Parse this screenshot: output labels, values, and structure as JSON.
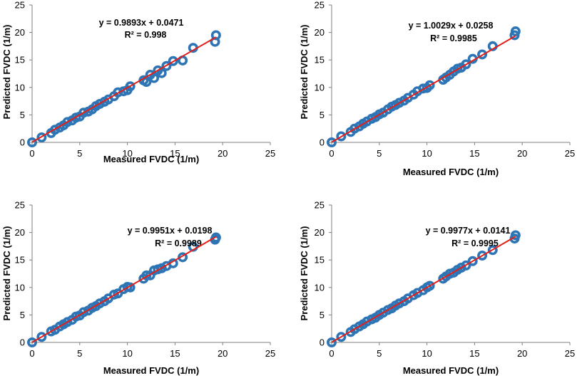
{
  "colors": {
    "marker": "#2e75b6",
    "fit_line": "#e0211c",
    "axis": "#7f7f7f"
  },
  "chart_data": [
    {
      "type": "scatter",
      "title": "",
      "xlabel": "Measured FVDC (1/m)",
      "ylabel": "Predicted FVDC (1/m)",
      "xlim": [
        0,
        25
      ],
      "ylim": [
        0,
        25
      ],
      "xticks": [
        "0",
        "5",
        "10",
        "15",
        "20",
        "25"
      ],
      "yticks": [
        "0",
        "5",
        "10",
        "15",
        "20",
        "25"
      ],
      "trendline": {
        "slope": 0.9893,
        "intercept": 0.0471
      },
      "equation": "y = 0.9893x + 0.0471",
      "r_squared": "R² = 0.998",
      "x": [
        0,
        1,
        2,
        2.4,
        2.9,
        3.3,
        3.7,
        4.2,
        4.6,
        5.0,
        5.4,
        5.9,
        6.3,
        6.7,
        7.1,
        7.6,
        8.0,
        8.6,
        9.0,
        9.6,
        10.0,
        10.3,
        11.7,
        12.0,
        12.4,
        12.8,
        13.2,
        13.6,
        14.1,
        14.8,
        15.8,
        16.9,
        19.2,
        19.3
      ],
      "y": [
        0,
        0.9,
        1.7,
        2.3,
        2.7,
        3.1,
        3.7,
        4.0,
        4.5,
        4.7,
        5.4,
        5.6,
        6.0,
        6.6,
        7.0,
        7.4,
        7.8,
        8.4,
        9.1,
        9.3,
        9.5,
        10.2,
        11.3,
        11.0,
        12.3,
        11.7,
        13.1,
        12.6,
        13.9,
        14.8,
        14.9,
        17.2,
        18.3,
        19.5
      ]
    },
    {
      "type": "scatter",
      "title": "",
      "xlabel": "Measured FVDC (1/m)",
      "ylabel": "Predicted FVDC (1/m)",
      "xlim": [
        0,
        25
      ],
      "ylim": [
        0,
        25
      ],
      "xticks": [
        "0",
        "5",
        "10",
        "15",
        "20",
        "25"
      ],
      "yticks": [
        "0",
        "5",
        "10",
        "15",
        "20",
        "25"
      ],
      "trendline": {
        "slope": 1.0029,
        "intercept": 0.0258
      },
      "equation": "y = 1.0029x + 0.0258",
      "r_squared": "R² = 0.9985",
      "x": [
        0,
        1,
        2,
        2.4,
        2.9,
        3.3,
        3.7,
        4.2,
        4.6,
        5.0,
        5.4,
        5.9,
        6.3,
        6.7,
        7.1,
        7.6,
        8.0,
        8.6,
        9.0,
        9.6,
        10.0,
        10.3,
        11.7,
        12.0,
        12.4,
        12.8,
        13.2,
        13.6,
        14.1,
        14.8,
        15.8,
        16.9,
        19.2,
        19.3
      ],
      "y": [
        0,
        1.1,
        1.9,
        2.5,
        2.9,
        3.4,
        3.8,
        4.3,
        4.6,
        5.1,
        5.4,
        6.0,
        6.5,
        6.8,
        7.2,
        7.6,
        8.1,
        8.7,
        9.3,
        9.8,
        9.9,
        10.4,
        11.4,
        11.8,
        12.3,
        12.9,
        13.4,
        13.6,
        14.2,
        15.2,
        16.0,
        17.5,
        19.5,
        20.2
      ]
    },
    {
      "type": "scatter",
      "title": "",
      "xlabel": "Measured FVDC (1/m)",
      "ylabel": "Predicted FVDC (1/m)",
      "xlim": [
        0,
        25
      ],
      "ylim": [
        0,
        25
      ],
      "xticks": [
        "0",
        "5",
        "10",
        "15",
        "20",
        "25"
      ],
      "yticks": [
        "0",
        "5",
        "10",
        "15",
        "20",
        "25"
      ],
      "trendline": {
        "slope": 0.9951,
        "intercept": 0.0198
      },
      "equation": "y = 0.9951x + 0.0198",
      "r_squared": "R² = 0.9989",
      "x": [
        0,
        1,
        2,
        2.4,
        2.9,
        3.3,
        3.7,
        4.2,
        4.6,
        5.0,
        5.4,
        5.9,
        6.3,
        6.7,
        7.1,
        7.6,
        8.0,
        8.6,
        9.0,
        9.6,
        10.0,
        10.3,
        11.7,
        12.0,
        12.4,
        12.8,
        13.2,
        13.6,
        14.1,
        14.8,
        15.8,
        16.9,
        19.2,
        19.3
      ],
      "y": [
        0,
        1.0,
        2.0,
        2.3,
        2.9,
        3.3,
        3.7,
        4.1,
        4.7,
        4.9,
        5.5,
        5.8,
        6.3,
        6.6,
        7.1,
        7.5,
        8.0,
        8.7,
        8.9,
        9.7,
        10.1,
        10.0,
        11.6,
        12.2,
        12.2,
        13.1,
        13.3,
        13.5,
        13.9,
        14.4,
        15.5,
        17.4,
        18.7,
        19.1
      ]
    },
    {
      "type": "scatter",
      "title": "",
      "xlabel": "Measured FVDC (1/m)",
      "ylabel": "Predicted FVDC (1/m)",
      "xlim": [
        0,
        25
      ],
      "ylim": [
        0,
        25
      ],
      "xticks": [
        "0",
        "5",
        "10",
        "15",
        "20",
        "25"
      ],
      "yticks": [
        "0",
        "5",
        "10",
        "15",
        "20",
        "25"
      ],
      "trendline": {
        "slope": 0.9977,
        "intercept": 0.0141
      },
      "equation": "y = 0.9977x + 0.0141",
      "r_squared": "R² = 0.9995",
      "x": [
        0,
        1,
        2,
        2.4,
        2.9,
        3.3,
        3.7,
        4.2,
        4.6,
        5.0,
        5.4,
        5.9,
        6.3,
        6.7,
        7.1,
        7.6,
        8.0,
        8.6,
        9.0,
        9.6,
        10.0,
        10.3,
        11.7,
        12.0,
        12.4,
        12.8,
        13.2,
        13.6,
        14.1,
        14.8,
        15.8,
        16.9,
        19.2,
        19.3
      ],
      "y": [
        0,
        1.0,
        1.9,
        2.4,
        2.9,
        3.3,
        3.8,
        4.2,
        4.5,
        5.0,
        5.4,
        5.9,
        6.2,
        6.7,
        7.1,
        7.5,
        8.0,
        8.6,
        9.0,
        9.5,
        10.0,
        10.3,
        11.6,
        12.0,
        12.5,
        12.7,
        13.2,
        13.6,
        14.0,
        14.8,
        15.8,
        16.8,
        18.9,
        19.5
      ]
    }
  ]
}
